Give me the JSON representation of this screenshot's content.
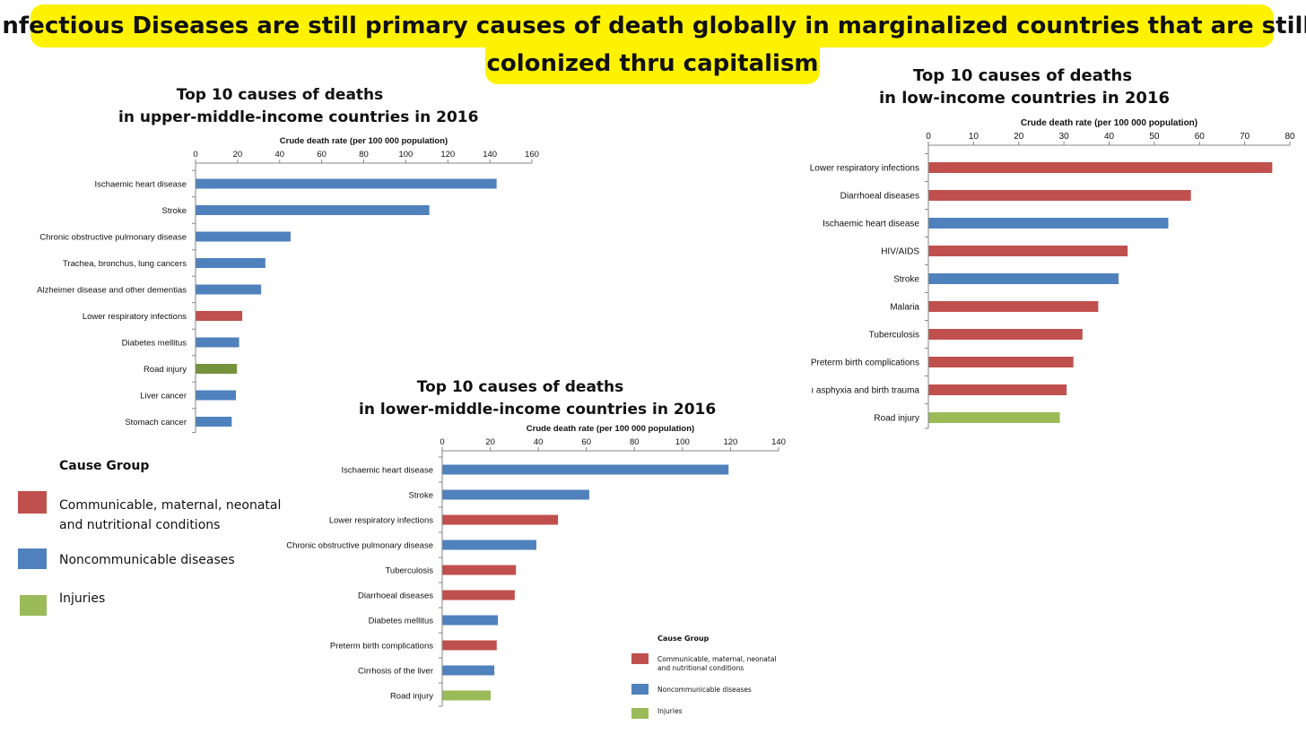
{
  "headline": {
    "line1": "Infectious Diseases are still primary causes of death globally in marginalized countries that are still",
    "line2": "colonized thru capitalism"
  },
  "colors": {
    "communicable": "#c0504d",
    "noncommunicable": "#4f81bd",
    "injuries": "#9bbb59",
    "injuries_dark": "#76923c"
  },
  "chart_data": [
    {
      "id": "upper-middle",
      "type": "bar",
      "orientation": "horizontal",
      "title_line1": "Top 10 causes of deaths",
      "title_line2": "in upper-middle-income countries in 2016",
      "xlabel": "Crude death rate (per 100 000 population)",
      "xlim": [
        0,
        160
      ],
      "ticks": [
        0,
        20,
        40,
        60,
        80,
        100,
        120,
        140,
        160
      ],
      "grid": false,
      "categories": [
        "Ischaemic heart disease",
        "Stroke",
        "Chronic obstructive pulmonary disease",
        "Trachea, bronchus, lung cancers",
        "Alzheimer disease and other dementias",
        "Lower respiratory infections",
        "Diabetes mellitus",
        "Road injury",
        "Liver cancer",
        "Stomach cancer"
      ],
      "values": [
        143,
        111,
        45,
        33,
        31,
        22,
        20.5,
        19.5,
        19,
        17
      ],
      "groups": [
        "noncommunicable",
        "noncommunicable",
        "noncommunicable",
        "noncommunicable",
        "noncommunicable",
        "communicable",
        "noncommunicable",
        "injuries",
        "noncommunicable",
        "noncommunicable"
      ]
    },
    {
      "id": "low",
      "type": "bar",
      "orientation": "horizontal",
      "title_line1": "Top 10 causes of deaths",
      "title_line2": "in low-income countries in 2016",
      "xlabel": "Crude death rate (per 100 000 population)",
      "xlim": [
        0,
        80
      ],
      "ticks": [
        0,
        10,
        20,
        30,
        40,
        50,
        60,
        70,
        80
      ],
      "grid": false,
      "categories": [
        "Lower respiratory infections",
        "Diarrhoeal diseases",
        "Ischaemic heart disease",
        "HIV/AIDS",
        "Stroke",
        "Malaria",
        "Tuberculosis",
        "Preterm birth complications",
        "ı asphyxia and birth trauma",
        "Road injury"
      ],
      "values": [
        76,
        58,
        53,
        44,
        42,
        37.5,
        34,
        32,
        30.5,
        29
      ],
      "groups": [
        "communicable",
        "communicable",
        "noncommunicable",
        "communicable",
        "noncommunicable",
        "communicable",
        "communicable",
        "communicable",
        "communicable",
        "injuries"
      ]
    },
    {
      "id": "lower-middle",
      "type": "bar",
      "orientation": "horizontal",
      "title_line1": "Top 10 causes of deaths",
      "title_line2": "in lower-middle-income countries in 2016",
      "xlabel": "Crude death rate (per 100 000 population)",
      "xlim": [
        0,
        140
      ],
      "ticks": [
        0,
        20,
        40,
        60,
        80,
        100,
        120,
        140
      ],
      "grid": false,
      "categories": [
        "Ischaemic heart disease",
        "Stroke",
        "Lower respiratory infections",
        "Chronic obstructive pulmonary disease",
        "Tuberculosis",
        "Diarrhoeal diseases",
        "Diabetes mellitus",
        "Preterm birth complications",
        "Cirrhosis of the liver",
        "Road injury"
      ],
      "values": [
        119,
        61,
        48,
        39,
        30.5,
        30,
        23,
        22.5,
        21.5,
        20
      ],
      "groups": [
        "noncommunicable",
        "noncommunicable",
        "communicable",
        "noncommunicable",
        "communicable",
        "communicable",
        "noncommunicable",
        "communicable",
        "noncommunicable",
        "injuries"
      ]
    }
  ],
  "legend": {
    "title": "Cause Group",
    "items": [
      {
        "group": "communicable",
        "label": "Communicable, maternal, neonatal\nand nutritional conditions"
      },
      {
        "group": "noncommunicable",
        "label": "Noncommunicable diseases"
      },
      {
        "group": "injuries",
        "label": "Injuries"
      }
    ]
  }
}
